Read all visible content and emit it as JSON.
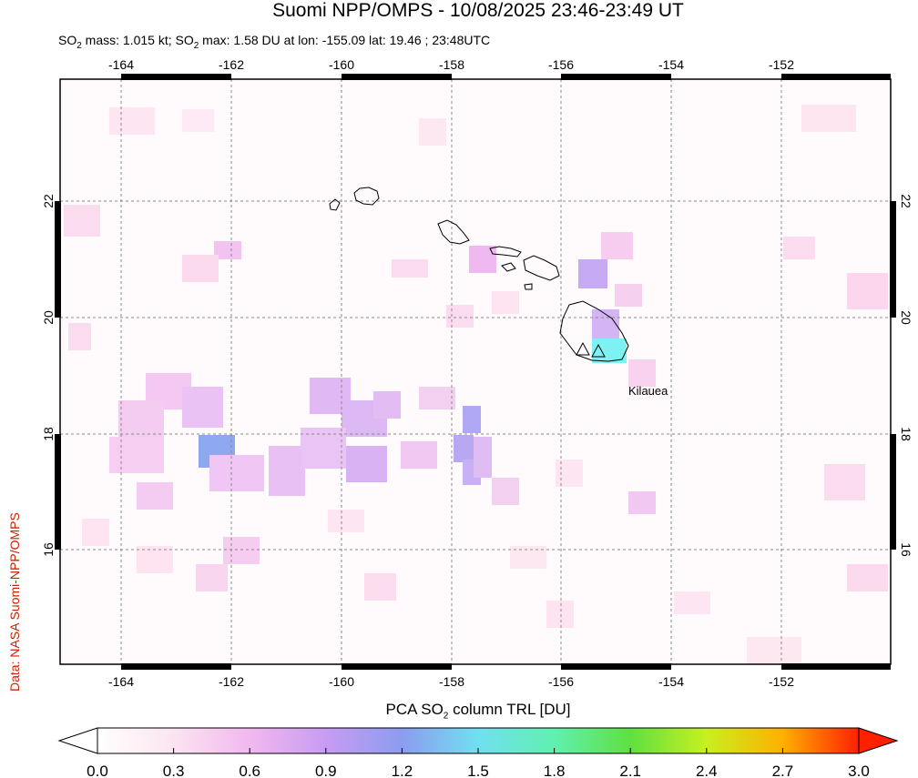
{
  "header": {
    "title": "Suomi NPP/OMPS - 10/08/2025 23:46-23:49 UT",
    "subtitle_so2_1": "SO",
    "subtitle_sub_1": "2",
    "subtitle_mid": " mass: 1.015 kt; SO",
    "subtitle_sub_2": "2",
    "subtitle_rest": " max: 1.58 DU at lon: -155.09 lat: 19.46 ; 23:48UTC"
  },
  "credit": "Data: NASA Suomi-NPP/OMPS",
  "map": {
    "lon_ticks": [
      "-164",
      "-162",
      "-160",
      "-158",
      "-156",
      "-154",
      "-152"
    ],
    "lat_ticks": [
      "22",
      "20",
      "18",
      "16"
    ],
    "volcano_label": "Kilauea",
    "colors": {
      "frame": "#000000",
      "grid": "#888888"
    }
  },
  "colorbar": {
    "label_pre": "PCA SO",
    "label_sub": "2",
    "label_post": " column TRL [DU]",
    "ticks": [
      "0.0",
      "0.3",
      "0.6",
      "0.9",
      "1.2",
      "1.5",
      "1.8",
      "2.1",
      "2.4",
      "2.7",
      "3.0"
    ],
    "range": [
      0.0,
      3.0
    ]
  }
}
